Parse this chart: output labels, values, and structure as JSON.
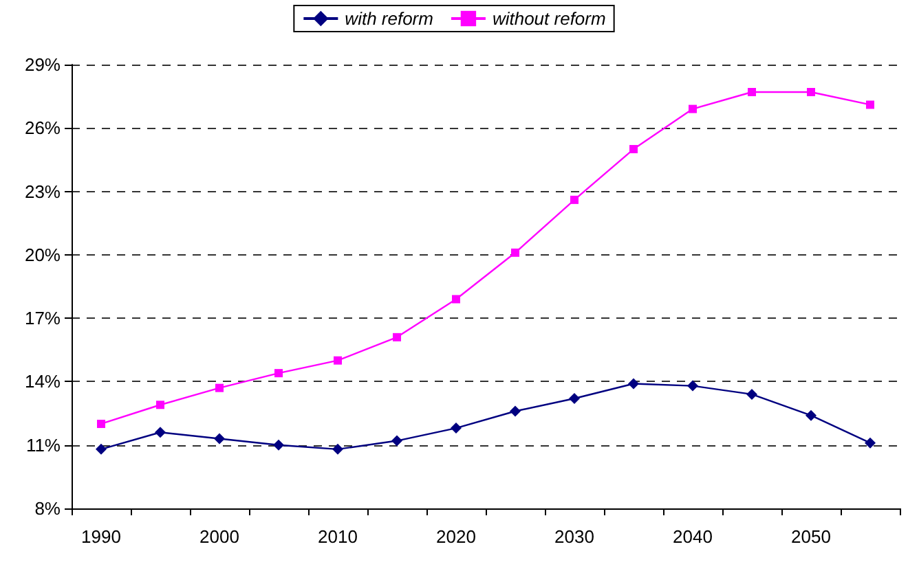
{
  "chart_data": {
    "type": "line",
    "categories": [
      "1990",
      null,
      "2000",
      null,
      "2010",
      null,
      "2020",
      null,
      "2030",
      null,
      "2040",
      null,
      "2050",
      null
    ],
    "series": [
      {
        "name": "with reform",
        "color": "#000080",
        "marker": "diamond",
        "values": [
          10.8,
          11.6,
          11.3,
          11.0,
          10.8,
          11.2,
          11.8,
          12.6,
          13.2,
          13.9,
          13.8,
          13.4,
          12.4,
          11.1
        ]
      },
      {
        "name": "without reform",
        "color": "#ff00ff",
        "marker": "square",
        "values": [
          12.0,
          12.9,
          13.7,
          14.4,
          15.0,
          16.1,
          17.9,
          20.1,
          22.6,
          25.0,
          26.9,
          27.7,
          27.7,
          27.1
        ]
      }
    ],
    "ylim": [
      8,
      29
    ],
    "yticks": [
      {
        "value": 8,
        "label": "8%"
      },
      {
        "value": 11,
        "label": "11%"
      },
      {
        "value": 14,
        "label": "14%"
      },
      {
        "value": 17,
        "label": "17%"
      },
      {
        "value": 20,
        "label": "20%"
      },
      {
        "value": 23,
        "label": "23%"
      },
      {
        "value": 26,
        "label": "26%"
      },
      {
        "value": 29,
        "label": "29%"
      }
    ],
    "grid": "y",
    "legend": "top"
  }
}
